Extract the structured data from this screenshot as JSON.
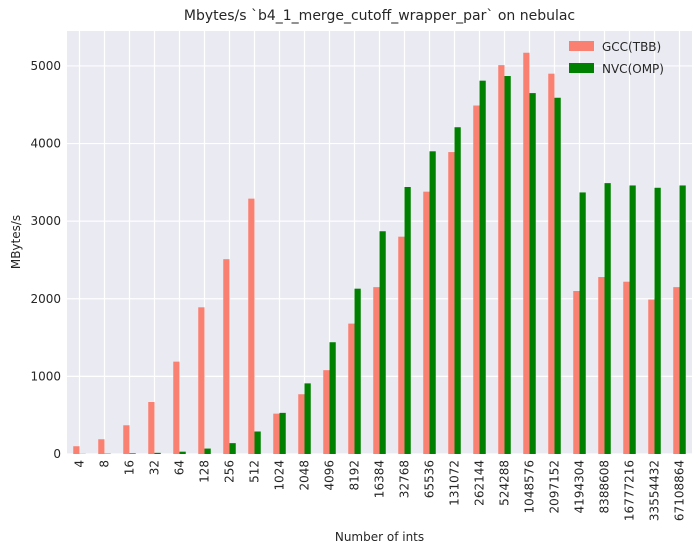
{
  "chart_data": {
    "type": "bar",
    "title": "Mbytes/s `b4_1_merge_cutoff_wrapper_par` on nebulac",
    "xlabel": "Number of ints",
    "ylabel": "MBytes/s",
    "ylim": [
      0,
      5450
    ],
    "yticks": [
      0,
      1000,
      2000,
      3000,
      4000,
      5000
    ],
    "grid": true,
    "legend_position": "top-right",
    "categories": [
      "4",
      "8",
      "16",
      "32",
      "64",
      "128",
      "256",
      "512",
      "1024",
      "2048",
      "4096",
      "8192",
      "16384",
      "32768",
      "65536",
      "131072",
      "262144",
      "524288",
      "1048576",
      "2097152",
      "4194304",
      "8388608",
      "16777216",
      "33554432",
      "67108864"
    ],
    "series": [
      {
        "name": "GCC(TBB)",
        "color": "#fa8072",
        "values": [
          100,
          190,
          370,
          670,
          1190,
          1890,
          2510,
          3290,
          520,
          770,
          1080,
          1680,
          2150,
          2800,
          3380,
          3890,
          4490,
          5010,
          5170,
          4900,
          2100,
          2280,
          2220,
          1990,
          2150
        ]
      },
      {
        "name": "NVC(OMP)",
        "color": "#008000",
        "values": [
          2,
          4,
          8,
          15,
          30,
          70,
          140,
          290,
          530,
          910,
          1440,
          2130,
          2870,
          3440,
          3900,
          4210,
          4810,
          4870,
          4650,
          4590,
          3370,
          3490,
          3460,
          3430,
          3460
        ]
      }
    ]
  }
}
